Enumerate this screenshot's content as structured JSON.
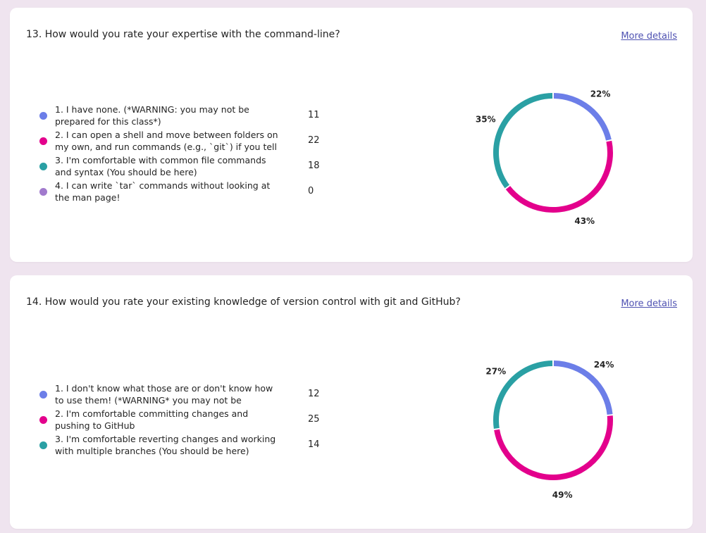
{
  "colors": {
    "blue": "#6c7ee8",
    "pink": "#e3008c",
    "teal": "#2aa0a4",
    "purple": "#a17acd"
  },
  "questions": [
    {
      "title": "13. How would you rate your expertise with the command-line?",
      "more_details": "More details",
      "options": [
        {
          "label": "1. I have none. (*WARNING: you may not be prepared for this class*)",
          "count": "11",
          "color": "#6c7ee8"
        },
        {
          "label": "2. I can open a shell and move between folders on my own, and run commands (e.g., `git`) if you tell m...",
          "count": "22",
          "color": "#e3008c"
        },
        {
          "label": "3. I'm comfortable with common file commands and syntax (You should be here)",
          "count": "18",
          "color": "#2aa0a4"
        },
        {
          "label": "4. I can write `tar` commands without looking at the man page!",
          "count": "0",
          "color": "#a17acd"
        }
      ]
    },
    {
      "title": "14. How would you rate your existing knowledge of version control with git and GitHub?",
      "more_details": "More details",
      "options": [
        {
          "label": "1. I don't know what those are or don't know how to use them! (*WARNING* you may not be prepared f...",
          "count": "12",
          "color": "#6c7ee8"
        },
        {
          "label": "2. I'm comfortable committing changes and pushing to GitHub",
          "count": "25",
          "color": "#e3008c"
        },
        {
          "label": "3. I'm comfortable reverting changes and working with multiple branches (You should be here)",
          "count": "14",
          "color": "#2aa0a4"
        }
      ]
    }
  ],
  "chart_data": [
    {
      "type": "pie",
      "categories": [
        "1. I have none. (*WARNING: you may not be prepared for this class*)",
        "2. I can open a shell and move between folders on my own, and run commands (e.g., `git`) if you tell m...",
        "3. I'm comfortable with common file commands and syntax (You should be here)",
        "4. I can write `tar` commands without looking at the man page!"
      ],
      "values": [
        11,
        22,
        18,
        0
      ],
      "labels": [
        "22%",
        "43%",
        "35%",
        ""
      ],
      "colors": [
        "#6c7ee8",
        "#e3008c",
        "#2aa0a4",
        "#a17acd"
      ],
      "style": "donut"
    },
    {
      "type": "pie",
      "categories": [
        "1. I don't know what those are or don't know how to use them! (*WARNING* you may not be prepared f...",
        "2. I'm comfortable committing changes and pushing to GitHub",
        "3. I'm comfortable reverting changes and working with multiple branches (You should be here)"
      ],
      "values": [
        12,
        25,
        14
      ],
      "labels": [
        "24%",
        "49%",
        "27%"
      ],
      "colors": [
        "#6c7ee8",
        "#e3008c",
        "#2aa0a4"
      ],
      "style": "donut"
    }
  ]
}
